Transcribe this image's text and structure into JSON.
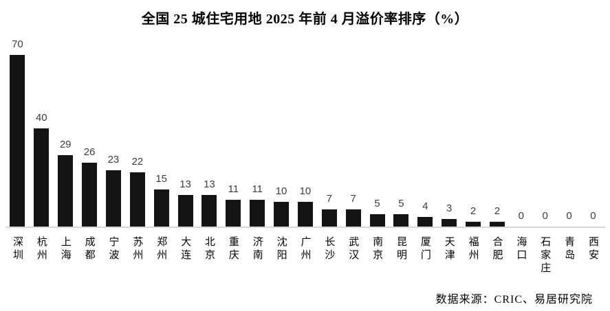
{
  "chart_data": {
    "type": "bar",
    "title": "全国 25 城住宅用地 2025 年前 4 月溢价率排序（%）",
    "categories": [
      "深圳",
      "杭州",
      "上海",
      "成都",
      "宁波",
      "苏州",
      "郑州",
      "大连",
      "北京",
      "重庆",
      "济南",
      "沈阳",
      "广州",
      "长沙",
      "武汉",
      "南京",
      "昆明",
      "厦门",
      "天津",
      "福州",
      "合肥",
      "海口",
      "石家庄",
      "青岛",
      "西安"
    ],
    "values": [
      70,
      40,
      29,
      26,
      23,
      22,
      15,
      13,
      13,
      11,
      11,
      10,
      10,
      7,
      7,
      5,
      5,
      4,
      3,
      2,
      2,
      0,
      0,
      0,
      0
    ],
    "xlabel": "",
    "ylabel": "",
    "ylim": [
      0,
      70
    ],
    "grid": false,
    "legend": false,
    "value_labels_shown": true,
    "bar_color": "#141414",
    "value_label_color": "#3d3d3d",
    "axis_color": "#d9d9d9",
    "source": "数据来源：CRIC、易居研究院"
  }
}
